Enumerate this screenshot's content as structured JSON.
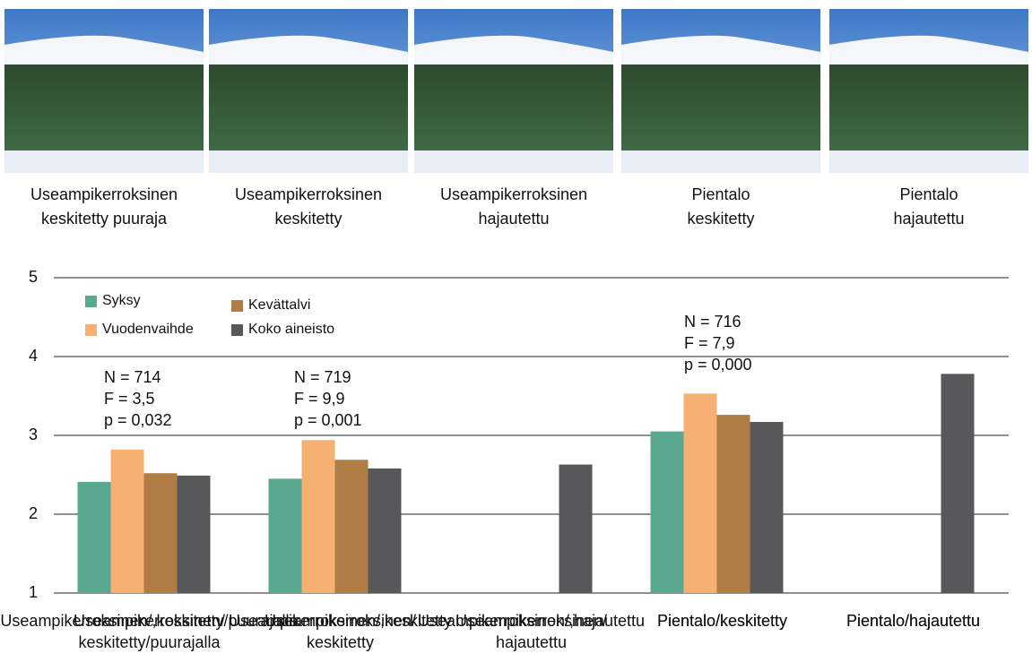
{
  "images": [
    {
      "caption": [
        "Useampikerroksinen",
        "keskitetty puuraja"
      ]
    },
    {
      "caption": [
        "Useampikerroksinen",
        "keskitetty"
      ]
    },
    {
      "caption": [
        "Useampikerroksinen",
        "hajautettu"
      ]
    },
    {
      "caption": [
        "Pientalo",
        "keskitetty"
      ]
    },
    {
      "caption": [
        "Pientalo",
        "hajautettu"
      ]
    }
  ],
  "chart_data": {
    "type": "bar",
    "categories": [
      [
        "Useampikerroksinen/",
        "keskitetty/puurajalla"
      ],
      [
        "Useampikerroksinen/",
        "keskitetty"
      ],
      [
        "Useampikerroksinen/",
        "hajautettu"
      ],
      [
        "Pientalo/keskitetty"
      ],
      [
        "Pientalo/hajautettu"
      ]
    ],
    "series": [
      {
        "name": "Syksy",
        "color": "#5ba891",
        "values": [
          2.41,
          2.45,
          null,
          3.05,
          null
        ]
      },
      {
        "name": "Vuodenvaihde",
        "color": "#f6b072",
        "values": [
          2.82,
          2.94,
          null,
          3.53,
          null
        ]
      },
      {
        "name": "Kevättalvi",
        "color": "#b07e45",
        "values": [
          2.52,
          2.69,
          null,
          3.26,
          null
        ]
      },
      {
        "name": "Koko aineisto",
        "color": "#58585a",
        "values": [
          2.49,
          2.58,
          2.63,
          3.17,
          3.78
        ]
      }
    ],
    "ylim": [
      1,
      5
    ],
    "yticks": [
      1,
      2,
      3,
      4,
      5
    ],
    "grid": true,
    "annotations": [
      [
        "N = 714",
        "F = 3,5",
        "p = 0,032"
      ],
      [
        "N = 719",
        "F = 9,9",
        "p = 0,001"
      ],
      [
        "N = 716",
        "F = 7,9",
        "p = 0,000"
      ]
    ]
  }
}
